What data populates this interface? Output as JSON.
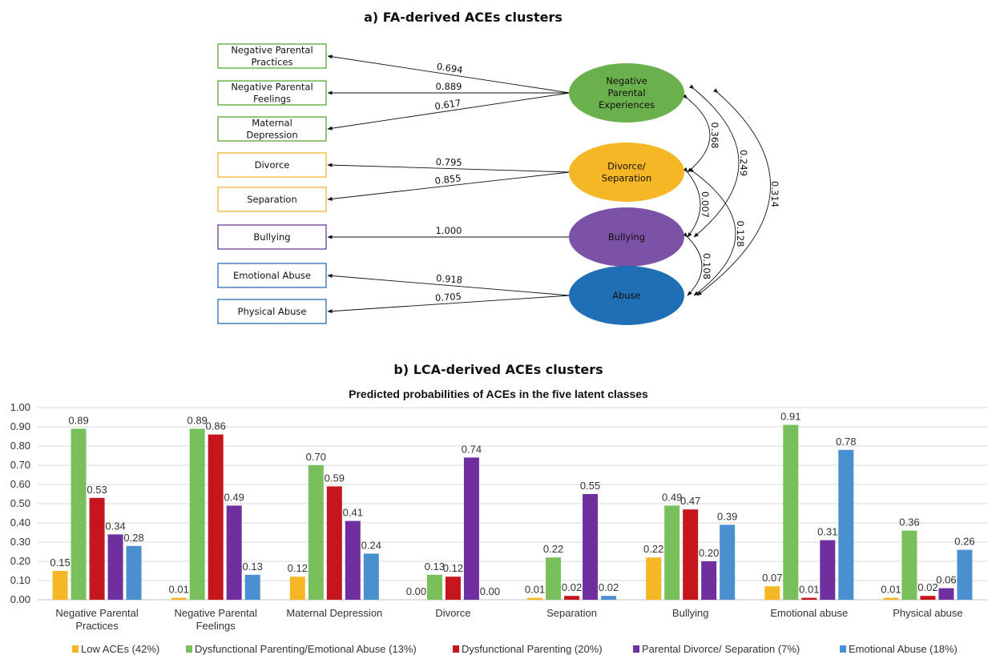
{
  "fa": {
    "title": "a) FA-derived ACEs clusters",
    "factors": [
      {
        "id": "npe",
        "lines": [
          "Negative",
          "Parental",
          "Experiences"
        ],
        "color": "#6ab04c"
      },
      {
        "id": "div",
        "lines": [
          "Divorce/",
          "Separation"
        ],
        "color": "#f6b726"
      },
      {
        "id": "bul",
        "lines": [
          "Bullying"
        ],
        "color": "#7b52a6"
      },
      {
        "id": "abu",
        "lines": [
          "Abuse"
        ],
        "color": "#1f6fb5"
      }
    ],
    "indicators": [
      {
        "lines": [
          "Negative Parental",
          "Practices"
        ],
        "factor": "npe",
        "loading": "0.694",
        "color": "#5aa832"
      },
      {
        "lines": [
          "Negative Parental",
          "Feelings"
        ],
        "factor": "npe",
        "loading": "0.889",
        "color": "#5aa832"
      },
      {
        "lines": [
          "Maternal",
          "Depression"
        ],
        "factor": "npe",
        "loading": "0.617",
        "color": "#5aa832"
      },
      {
        "lines": [
          "Divorce"
        ],
        "factor": "div",
        "loading": "0.795",
        "color": "#f2b531"
      },
      {
        "lines": [
          "Separation"
        ],
        "factor": "div",
        "loading": "0.855",
        "color": "#f2b531"
      },
      {
        "lines": [
          "Bullying"
        ],
        "factor": "bul",
        "loading": "1.000",
        "color": "#6a3d9a"
      },
      {
        "lines": [
          "Emotional Abuse"
        ],
        "factor": "abu",
        "loading": "0.918",
        "color": "#2a6db5"
      },
      {
        "lines": [
          "Physical Abuse"
        ],
        "factor": "abu",
        "loading": "0.705",
        "color": "#2a6db5"
      }
    ],
    "correlations": [
      {
        "from": "npe",
        "to": "div",
        "value": "0.368"
      },
      {
        "from": "npe",
        "to": "bul",
        "value": "0.249"
      },
      {
        "from": "npe",
        "to": "abu",
        "value": "0.314"
      },
      {
        "from": "div",
        "to": "bul",
        "value": "0.007"
      },
      {
        "from": "div",
        "to": "abu",
        "value": "0.128"
      },
      {
        "from": "bul",
        "to": "abu",
        "value": "0.108"
      }
    ]
  },
  "lca": {
    "title": "b) LCA-derived ACEs clusters"
  },
  "chart_data": {
    "type": "bar",
    "title": "Predicted probabilities of ACEs in the five latent classes",
    "categories": [
      "Negative Parental Practices",
      "Negative Parental Feelings",
      "Maternal Depression",
      "Divorce",
      "Separation",
      "Bullying",
      "Emotional abuse",
      "Physical abuse"
    ],
    "category_lines": [
      [
        "Negative Parental",
        "Practices"
      ],
      [
        "Negative Parental",
        "Feelings"
      ],
      [
        "Maternal Depression"
      ],
      [
        "Divorce"
      ],
      [
        "Separation"
      ],
      [
        "Bullying"
      ],
      [
        "Emotional abuse"
      ],
      [
        "Physical abuse"
      ]
    ],
    "series": [
      {
        "name": "Low ACEs (42%)",
        "color": "#f6b726",
        "values": [
          0.15,
          0.01,
          0.12,
          0.0,
          0.01,
          0.22,
          0.07,
          0.01
        ]
      },
      {
        "name": "Dysfunctional Parenting/Emotional Abuse (13%)",
        "color": "#79c05d",
        "values": [
          0.89,
          0.89,
          0.7,
          0.13,
          0.22,
          0.49,
          0.91,
          0.36
        ]
      },
      {
        "name": "Dysfunctional Parenting (20%)",
        "color": "#c5161d",
        "values": [
          0.53,
          0.86,
          0.59,
          0.12,
          0.02,
          0.47,
          0.01,
          0.02
        ]
      },
      {
        "name": "Parental Divorce/ Separation (7%)",
        "color": "#6f2f9f",
        "values": [
          0.34,
          0.49,
          0.41,
          0.74,
          0.55,
          0.2,
          0.31,
          0.06
        ]
      },
      {
        "name": "Emotional Abuse (18%)",
        "color": "#4a90d0",
        "values": [
          0.28,
          0.13,
          0.24,
          0.0,
          0.02,
          0.39,
          0.78,
          0.26
        ]
      }
    ],
    "ylim": [
      0,
      1
    ],
    "yticks": [
      "0.00",
      "0.10",
      "0.20",
      "0.30",
      "0.40",
      "0.50",
      "0.60",
      "0.70",
      "0.80",
      "0.90",
      "1.00"
    ],
    "grid": true,
    "legend": "bottom"
  }
}
